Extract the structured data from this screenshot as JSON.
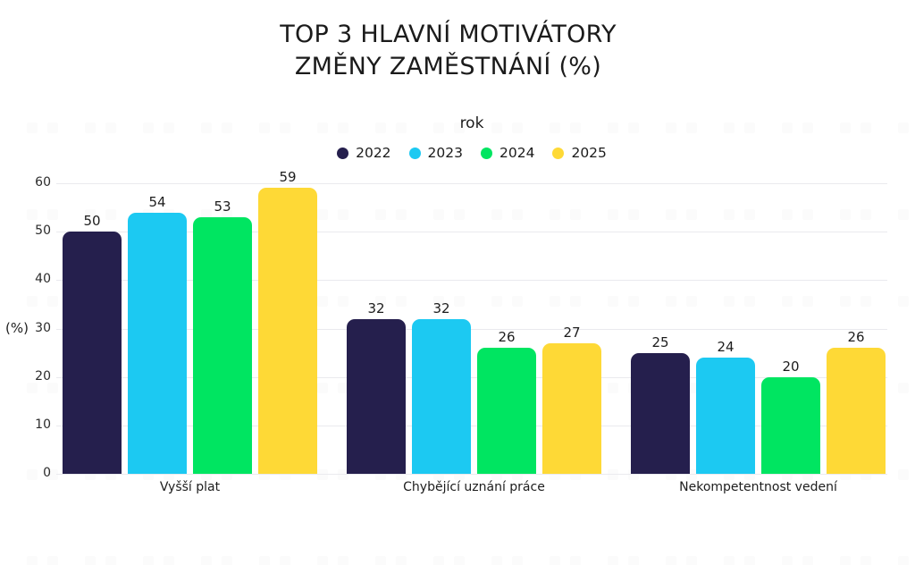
{
  "chart_data": {
    "type": "bar",
    "title": "TOP 3 HLAVNÍ MOTIVÁTORY ZMĚNY ZAMĚSTNÁNÍ (%)",
    "title_lines": [
      "TOP 3 HLAVNÍ MOTIVÁTORY",
      "ZMĚNY ZAMĚSTNÁNÍ (%)"
    ],
    "legend_title": "rok",
    "legend_position": "top-center",
    "categories": [
      "Vyšší plat",
      "Chybějící uznání práce",
      "Nekompetentnost vedení"
    ],
    "series": [
      {
        "name": "2022",
        "color": "#251f4d",
        "values": [
          50,
          32,
          25
        ]
      },
      {
        "name": "2023",
        "color": "#1cc9f2",
        "values": [
          54,
          32,
          24
        ]
      },
      {
        "name": "2024",
        "color": "#00e561",
        "values": [
          53,
          26,
          20
        ]
      },
      {
        "name": "2025",
        "color": "#fed936",
        "values": [
          59,
          27,
          26
        ]
      }
    ],
    "xlabel": "",
    "ylabel": "(%)",
    "ylim": [
      0,
      60
    ],
    "yticks": [
      0,
      10,
      20,
      30,
      40,
      50,
      60
    ],
    "grid": true,
    "value_labels_shown": true
  },
  "colors": {
    "background": "#ffffff",
    "gridline": "#eaeaee",
    "text": "#1b1b1b",
    "watermark": "#fbfbfb"
  }
}
